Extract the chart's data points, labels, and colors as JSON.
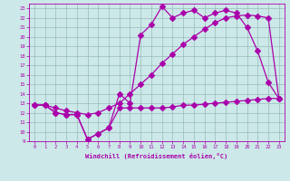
{
  "xlabel": "Windchill (Refroidissement éolien,°C)",
  "bg_color": "#cce8e8",
  "line_color": "#aa00aa",
  "grid_color": "#99bbbb",
  "xlim": [
    -0.5,
    23.5
  ],
  "ylim": [
    9,
    23.5
  ],
  "xticks": [
    0,
    1,
    2,
    3,
    4,
    5,
    6,
    7,
    8,
    9,
    10,
    11,
    12,
    13,
    14,
    15,
    16,
    17,
    18,
    19,
    20,
    21,
    22,
    23
  ],
  "yticks": [
    9,
    10,
    11,
    12,
    13,
    14,
    15,
    16,
    17,
    18,
    19,
    20,
    21,
    22,
    23
  ],
  "line1_x": [
    0,
    1,
    2,
    3,
    4,
    5,
    6,
    7,
    8,
    9,
    10,
    11,
    12,
    13,
    14,
    15,
    16,
    17,
    18,
    19,
    20,
    21,
    22,
    23
  ],
  "line1_y": [
    12.8,
    12.8,
    12.0,
    11.8,
    11.8,
    9.2,
    9.8,
    10.4,
    12.5,
    12.5,
    12.5,
    12.5,
    12.5,
    12.6,
    12.8,
    12.8,
    12.9,
    13.0,
    13.1,
    13.2,
    13.3,
    13.4,
    13.5,
    13.5
  ],
  "line2_x": [
    0,
    1,
    2,
    3,
    4,
    5,
    6,
    7,
    8,
    9,
    10,
    11,
    12,
    13,
    14,
    15,
    16,
    17,
    18,
    19,
    20,
    21,
    22,
    23
  ],
  "line2_y": [
    12.8,
    12.8,
    12.0,
    11.8,
    11.8,
    9.2,
    9.8,
    10.4,
    14.0,
    13.0,
    20.2,
    21.3,
    23.2,
    22.0,
    22.5,
    22.8,
    22.0,
    22.5,
    22.8,
    22.5,
    21.0,
    18.5,
    15.2,
    13.5
  ],
  "line3_x": [
    0,
    1,
    2,
    3,
    4,
    5,
    6,
    7,
    8,
    9,
    10,
    11,
    12,
    13,
    14,
    15,
    16,
    17,
    18,
    19,
    20,
    21,
    22,
    23
  ],
  "line3_y": [
    12.8,
    12.8,
    12.5,
    12.2,
    12.0,
    11.8,
    12.0,
    12.5,
    13.0,
    14.0,
    15.0,
    16.0,
    17.2,
    18.2,
    19.2,
    20.0,
    20.8,
    21.5,
    22.0,
    22.2,
    22.3,
    22.2,
    22.0,
    13.5
  ],
  "marker": "+",
  "marker_size": 3.0,
  "linewidth": 0.9
}
